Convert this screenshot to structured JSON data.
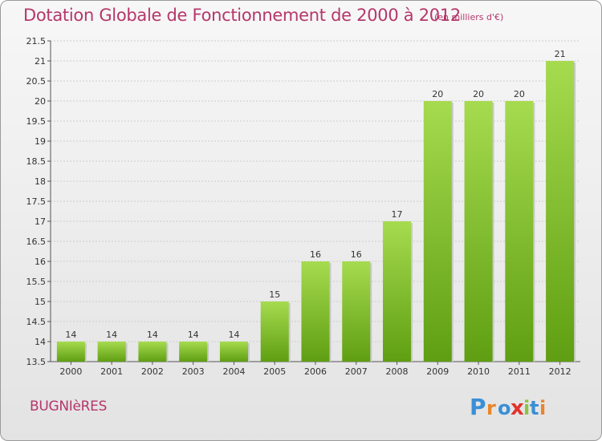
{
  "header": {
    "title": "Dotation Globale de Fonctionnement de 2000 à 2012",
    "unit": "(en milliers d'€)"
  },
  "footer": {
    "town": "BUGNIèRES",
    "brand": "Proxiti"
  },
  "colors": {
    "bar_light": "#9ed44a",
    "bar_dark": "#5f9e12",
    "accent": "#b5376a",
    "grid": "#cccccc"
  },
  "chart_data": {
    "type": "bar",
    "title": "Dotation Globale de Fonctionnement de 2000 à 2012",
    "subtitle": "(en milliers d'€)",
    "categories": [
      "2000",
      "2001",
      "2002",
      "2003",
      "2004",
      "2005",
      "2006",
      "2007",
      "2008",
      "2009",
      "2010",
      "2011",
      "2012"
    ],
    "values": [
      14,
      14,
      14,
      14,
      14,
      15,
      16,
      16,
      17,
      20,
      20,
      20,
      21
    ],
    "data_labels": [
      "14",
      "14",
      "14",
      "14",
      "14",
      "15",
      "16",
      "16",
      "17",
      "20",
      "20",
      "20",
      "21"
    ],
    "ylim": [
      13.5,
      21.5
    ],
    "yticks": [
      "13.5",
      "14",
      "14.5",
      "15",
      "15.5",
      "16",
      "16.5",
      "17",
      "17.5",
      "18",
      "18.5",
      "19",
      "19.5",
      "20",
      "20.5",
      "21",
      "21.5"
    ],
    "grid": true,
    "xlabel": "",
    "ylabel": ""
  }
}
